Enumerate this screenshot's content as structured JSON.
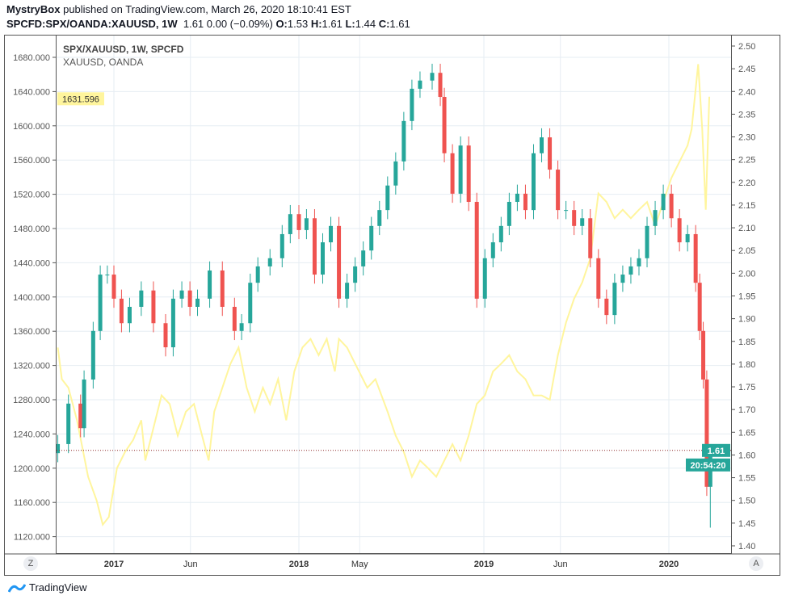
{
  "header": {
    "author": "MystryBox",
    "published_text": "published on TradingView.com, March 26, 2020 18:10:41 EST",
    "symbol": "SPCFD:SPX/OANDA:XAUUSD, 1W",
    "quote": "1.61 0.00 (−0.09%)",
    "o_label": "O:",
    "o": "1.53",
    "h_label": "H:",
    "h": "1.61",
    "l_label": "L:",
    "l": "1.44",
    "c_label": "C:",
    "c": "1.61"
  },
  "legend": {
    "main": "SPX/XAUUSD, 1W, SPCFD",
    "overlay": "XAUUSD, OANDA"
  },
  "buttons": {
    "left_scale": "Z",
    "auto_scale": "A"
  },
  "footer": {
    "brand": "TradingView",
    "icon": "tradingview-logo-icon"
  },
  "colors": {
    "up": "#26a69a",
    "down": "#ef5350",
    "overlay": "#fff59d",
    "grid": "#e6edf3"
  },
  "chart_data": [
    {
      "type": "candlestick",
      "title": "SPX/XAUUSD, 1W, SPCFD",
      "axis": "right",
      "ylim": [
        1.4,
        2.5
      ],
      "ticks": [
        "2.50",
        "2.45",
        "2.40",
        "2.35",
        "2.30",
        "2.25",
        "2.20",
        "2.15",
        "2.10",
        "2.05",
        "2.00",
        "1.95",
        "1.90",
        "1.85",
        "1.80",
        "1.75",
        "1.70",
        "1.65",
        "1.60",
        "1.55",
        "1.50",
        "1.45",
        "1.40"
      ],
      "last_price_label": "1.61",
      "countdown_label": "20:54:20",
      "last_bar": {
        "open": 1.53,
        "high": 1.61,
        "low": 1.44,
        "close": 1.61
      },
      "closes": [
        [
          "2016-09-12",
          1.624
        ],
        [
          "2016-10-03",
          1.713
        ],
        [
          "2016-10-27",
          1.659
        ],
        [
          "2016-11-03",
          1.766
        ],
        [
          "2016-11-21",
          1.873
        ],
        [
          "2016-12-05",
          1.997
        ],
        [
          "2016-12-19",
          1.997
        ],
        [
          "2017-01-01",
          1.944
        ],
        [
          "2017-01-16",
          1.89
        ],
        [
          "2017-02-01",
          1.926
        ],
        [
          "2017-02-24",
          1.962
        ],
        [
          "2017-03-20",
          1.89
        ],
        [
          "2017-04-13",
          1.837
        ],
        [
          "2017-04-28",
          1.944
        ],
        [
          "2017-05-15",
          1.962
        ],
        [
          "2017-05-31",
          1.926
        ],
        [
          "2017-06-15",
          1.944
        ],
        [
          "2017-07-09",
          2.006
        ],
        [
          "2017-08-03",
          1.926
        ],
        [
          "2017-08-27",
          1.873
        ],
        [
          "2017-09-10",
          1.89
        ],
        [
          "2017-09-27",
          1.979
        ],
        [
          "2017-10-12",
          2.015
        ],
        [
          "2017-11-05",
          2.033
        ],
        [
          "2017-11-29",
          2.086
        ],
        [
          "2017-12-15",
          2.13
        ],
        [
          "2018-01-01",
          2.095
        ],
        [
          "2018-01-16",
          2.121
        ],
        [
          "2018-02-01",
          1.997
        ],
        [
          "2018-02-17",
          2.068
        ],
        [
          "2018-03-05",
          2.104
        ],
        [
          "2018-03-21",
          1.944
        ],
        [
          "2018-04-06",
          1.979
        ],
        [
          "2018-04-22",
          2.015
        ],
        [
          "2018-05-08",
          2.05
        ],
        [
          "2018-05-24",
          2.104
        ],
        [
          "2018-06-09",
          2.139
        ],
        [
          "2018-06-25",
          2.193
        ],
        [
          "2018-07-11",
          2.246
        ],
        [
          "2018-07-27",
          2.335
        ],
        [
          "2018-08-12",
          2.406
        ],
        [
          "2018-08-28",
          2.424
        ],
        [
          "2018-09-21",
          2.441
        ],
        [
          "2018-10-07",
          2.388
        ],
        [
          "2018-10-15",
          2.264
        ],
        [
          "2018-10-31",
          2.175
        ],
        [
          "2018-11-16",
          2.281
        ],
        [
          "2018-12-02",
          2.157
        ],
        [
          "2018-12-18",
          1.944
        ],
        [
          "2019-01-03",
          2.033
        ],
        [
          "2019-01-19",
          2.068
        ],
        [
          "2019-02-04",
          2.104
        ],
        [
          "2019-02-20",
          2.157
        ],
        [
          "2019-03-08",
          2.175
        ],
        [
          "2019-03-24",
          2.139
        ],
        [
          "2019-04-09",
          2.264
        ],
        [
          "2019-04-25",
          2.299
        ],
        [
          "2019-05-11",
          2.228
        ],
        [
          "2019-05-27",
          2.139
        ],
        [
          "2019-06-12",
          2.139
        ],
        [
          "2019-06-28",
          2.104
        ],
        [
          "2019-07-14",
          2.121
        ],
        [
          "2019-07-30",
          2.033
        ],
        [
          "2019-08-15",
          1.944
        ],
        [
          "2019-08-31",
          1.908
        ],
        [
          "2019-09-16",
          1.979
        ],
        [
          "2019-10-02",
          1.997
        ],
        [
          "2019-10-18",
          2.015
        ],
        [
          "2019-11-03",
          2.033
        ],
        [
          "2019-11-19",
          2.104
        ],
        [
          "2019-12-05",
          2.139
        ],
        [
          "2019-12-21",
          2.175
        ],
        [
          "2020-01-06",
          2.121
        ],
        [
          "2020-01-22",
          2.068
        ],
        [
          "2020-02-07",
          2.086
        ],
        [
          "2020-02-23",
          1.979
        ],
        [
          "2020-03-02",
          1.873
        ],
        [
          "2020-03-09",
          1.766
        ],
        [
          "2020-03-16",
          1.53
        ],
        [
          "2020-03-23",
          1.61
        ]
      ]
    },
    {
      "type": "line",
      "title": "XAUUSD, OANDA",
      "axis": "left",
      "ylim": [
        1120,
        1680
      ],
      "ticks": [
        "1680.000",
        "1640.000",
        "1600.000",
        "1560.000",
        "1520.000",
        "1480.000",
        "1440.000",
        "1400.000",
        "1360.000",
        "1320.000",
        "1280.000",
        "1240.000",
        "1200.000",
        "1160.000",
        "1120.000"
      ],
      "last_price_label": "1631.596",
      "points": [
        [
          "2016-09-12",
          1341
        ],
        [
          "2016-09-20",
          1304
        ],
        [
          "2016-10-03",
          1294
        ],
        [
          "2016-10-20",
          1256
        ],
        [
          "2016-11-11",
          1190
        ],
        [
          "2016-11-28",
          1162
        ],
        [
          "2016-12-10",
          1134
        ],
        [
          "2016-12-22",
          1143
        ],
        [
          "2017-01-07",
          1200
        ],
        [
          "2017-01-23",
          1219
        ],
        [
          "2017-02-08",
          1233
        ],
        [
          "2017-02-24",
          1256
        ],
        [
          "2017-03-04",
          1209
        ],
        [
          "2017-03-20",
          1247
        ],
        [
          "2017-04-05",
          1285
        ],
        [
          "2017-04-21",
          1275
        ],
        [
          "2017-05-07",
          1238
        ],
        [
          "2017-05-23",
          1266
        ],
        [
          "2017-06-08",
          1275
        ],
        [
          "2017-06-24",
          1238
        ],
        [
          "2017-07-07",
          1209
        ],
        [
          "2017-07-18",
          1266
        ],
        [
          "2017-08-03",
          1294
        ],
        [
          "2017-08-19",
          1322
        ],
        [
          "2017-09-04",
          1341
        ],
        [
          "2017-09-20",
          1294
        ],
        [
          "2017-10-06",
          1266
        ],
        [
          "2017-10-22",
          1294
        ],
        [
          "2017-11-05",
          1275
        ],
        [
          "2017-11-21",
          1304
        ],
        [
          "2017-12-07",
          1256
        ],
        [
          "2017-12-23",
          1313
        ],
        [
          "2018-01-08",
          1341
        ],
        [
          "2018-01-24",
          1351
        ],
        [
          "2018-02-09",
          1332
        ],
        [
          "2018-02-25",
          1351
        ],
        [
          "2018-03-13",
          1313
        ],
        [
          "2018-03-21",
          1351
        ],
        [
          "2018-04-06",
          1341
        ],
        [
          "2018-04-22",
          1322
        ],
        [
          "2018-05-16",
          1294
        ],
        [
          "2018-06-01",
          1304
        ],
        [
          "2018-06-25",
          1266
        ],
        [
          "2018-07-11",
          1238
        ],
        [
          "2018-07-27",
          1219
        ],
        [
          "2018-08-12",
          1190
        ],
        [
          "2018-08-28",
          1209
        ],
        [
          "2018-09-13",
          1200
        ],
        [
          "2018-09-29",
          1190
        ],
        [
          "2018-10-15",
          1209
        ],
        [
          "2018-10-31",
          1228
        ],
        [
          "2018-11-16",
          1209
        ],
        [
          "2018-12-02",
          1238
        ],
        [
          "2018-12-18",
          1275
        ],
        [
          "2019-01-03",
          1285
        ],
        [
          "2019-01-19",
          1313
        ],
        [
          "2019-02-04",
          1322
        ],
        [
          "2019-02-20",
          1332
        ],
        [
          "2019-03-08",
          1313
        ],
        [
          "2019-03-24",
          1304
        ],
        [
          "2019-04-09",
          1285
        ],
        [
          "2019-04-25",
          1285
        ],
        [
          "2019-05-11",
          1280
        ],
        [
          "2019-05-27",
          1332
        ],
        [
          "2019-06-12",
          1370
        ],
        [
          "2019-06-28",
          1398
        ],
        [
          "2019-07-14",
          1417
        ],
        [
          "2019-07-30",
          1445
        ],
        [
          "2019-08-15",
          1521
        ],
        [
          "2019-08-31",
          1511
        ],
        [
          "2019-09-16",
          1492
        ],
        [
          "2019-10-02",
          1502
        ],
        [
          "2019-10-18",
          1492
        ],
        [
          "2019-11-03",
          1502
        ],
        [
          "2019-11-19",
          1511
        ],
        [
          "2019-12-05",
          1483
        ],
        [
          "2019-12-21",
          1511
        ],
        [
          "2020-01-06",
          1539
        ],
        [
          "2020-01-22",
          1558
        ],
        [
          "2020-02-07",
          1577
        ],
        [
          "2020-02-15",
          1596
        ],
        [
          "2020-02-23",
          1643
        ],
        [
          "2020-02-28",
          1672
        ],
        [
          "2020-03-07",
          1596
        ],
        [
          "2020-03-14",
          1502
        ],
        [
          "2020-03-21",
          1634
        ]
      ]
    }
  ],
  "x_axis": {
    "labels": [
      {
        "text": "2017",
        "date": "2017-01-01",
        "bold": true
      },
      {
        "text": "Jun",
        "date": "2017-06-01",
        "bold": false
      },
      {
        "text": "2018",
        "date": "2018-01-01",
        "bold": true
      },
      {
        "text": "May",
        "date": "2018-05-01",
        "bold": false
      },
      {
        "text": "2019",
        "date": "2019-01-01",
        "bold": true
      },
      {
        "text": "Jun",
        "date": "2019-06-01",
        "bold": false
      },
      {
        "text": "2020",
        "date": "2020-01-01",
        "bold": true
      }
    ]
  }
}
